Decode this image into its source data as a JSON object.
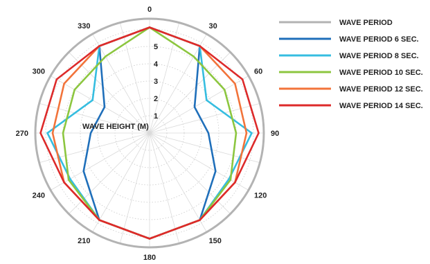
{
  "chart_data": {
    "type": "polar",
    "radial_label": "WAVE HEIGHT (M)",
    "radial_ticks": [
      "1",
      "2",
      "3",
      "4",
      "5"
    ],
    "rmax": 6.6,
    "angles": [
      0,
      30,
      60,
      90,
      120,
      150,
      180,
      210,
      240,
      270,
      300,
      330
    ],
    "angle_labels": [
      "0",
      "30",
      "60",
      "90",
      "120",
      "150",
      "180",
      "210",
      "240",
      "270",
      "300",
      "330"
    ],
    "outline": {
      "name": "WAVE PERIOD",
      "color": "#b3b3b3"
    },
    "series": [
      {
        "name": "WAVE PERIOD 6 SEC.",
        "color": "#1f6fba",
        "values": [
          6.1,
          5.8,
          3.0,
          3.4,
          4.4,
          5.8,
          6.1,
          5.8,
          4.4,
          3.4,
          3.0,
          5.8
        ]
      },
      {
        "name": "WAVE PERIOD 8 SEC.",
        "color": "#35bde0",
        "values": [
          6.1,
          5.8,
          3.8,
          5.9,
          5.3,
          5.8,
          6.1,
          5.8,
          5.3,
          5.9,
          3.8,
          5.8
        ]
      },
      {
        "name": "WAVE PERIOD 10 SEC.",
        "color": "#8cc63f",
        "values": [
          6.1,
          5.1,
          5.0,
          5.0,
          5.4,
          5.8,
          6.1,
          5.8,
          5.4,
          5.0,
          5.0,
          5.1
        ]
      },
      {
        "name": "WAVE PERIOD 12 SEC.",
        "color": "#f2733a",
        "values": [
          6.1,
          5.8,
          5.7,
          5.6,
          5.7,
          5.8,
          6.1,
          5.8,
          5.7,
          5.6,
          5.7,
          5.8
        ]
      },
      {
        "name": "WAVE PERIOD 14 SEC.",
        "color": "#dd2a2a",
        "values": [
          6.1,
          5.8,
          6.2,
          6.3,
          5.7,
          5.8,
          6.1,
          5.8,
          5.7,
          6.3,
          6.2,
          5.8
        ]
      }
    ]
  }
}
